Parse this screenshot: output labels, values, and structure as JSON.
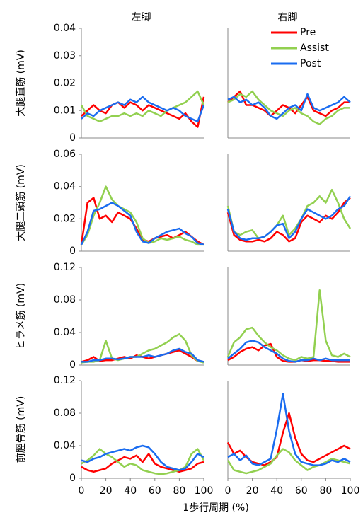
{
  "xlabel": "1歩行周期 (%)",
  "chart_data": [
    {
      "type": "line",
      "title": "左脚",
      "ylabel": "大腿直筋 (mV)",
      "x": [
        0,
        5,
        10,
        15,
        20,
        25,
        30,
        35,
        40,
        45,
        50,
        55,
        60,
        65,
        70,
        75,
        80,
        85,
        90,
        95,
        100
      ],
      "xlim": [
        0,
        100
      ],
      "ylim": [
        0,
        0.04
      ],
      "yticks": [
        0,
        0.01,
        0.02,
        0.03,
        0.04
      ],
      "series": [
        {
          "color": "#ff0000",
          "values": [
            0.008,
            0.01,
            0.012,
            0.01,
            0.009,
            0.012,
            0.013,
            0.011,
            0.013,
            0.012,
            0.01,
            0.012,
            0.011,
            0.01,
            0.009,
            0.008,
            0.007,
            0.009,
            0.006,
            0.004,
            0.015
          ]
        },
        {
          "color": "#92d050",
          "values": [
            0.012,
            0.008,
            0.007,
            0.006,
            0.007,
            0.008,
            0.008,
            0.009,
            0.008,
            0.009,
            0.008,
            0.01,
            0.009,
            0.008,
            0.01,
            0.011,
            0.012,
            0.013,
            0.015,
            0.017,
            0.012
          ]
        },
        {
          "color": "#1a6cf0",
          "values": [
            0.007,
            0.009,
            0.008,
            0.01,
            0.011,
            0.012,
            0.013,
            0.012,
            0.014,
            0.013,
            0.015,
            0.013,
            0.012,
            0.011,
            0.01,
            0.011,
            0.01,
            0.008,
            0.007,
            0.006,
            0.012
          ]
        }
      ]
    },
    {
      "type": "line",
      "title": "右脚",
      "legend": "upper right",
      "x": [
        0,
        5,
        10,
        15,
        20,
        25,
        30,
        35,
        40,
        45,
        50,
        55,
        60,
        65,
        70,
        75,
        80,
        85,
        90,
        95,
        100
      ],
      "xlim": [
        0,
        100
      ],
      "ylim": [
        0,
        0.04
      ],
      "series": [
        {
          "name": "Pre",
          "color": "#ff0000",
          "values": [
            0.013,
            0.015,
            0.017,
            0.012,
            0.012,
            0.011,
            0.01,
            0.008,
            0.01,
            0.012,
            0.011,
            0.009,
            0.012,
            0.015,
            0.01,
            0.009,
            0.008,
            0.01,
            0.011,
            0.013,
            0.013
          ]
        },
        {
          "name": "Assist",
          "color": "#92d050",
          "values": [
            0.013,
            0.014,
            0.016,
            0.015,
            0.017,
            0.014,
            0.012,
            0.01,
            0.009,
            0.008,
            0.01,
            0.011,
            0.009,
            0.008,
            0.006,
            0.005,
            0.007,
            0.008,
            0.01,
            0.011,
            0.011
          ]
        },
        {
          "name": "Post",
          "color": "#1a6cf0",
          "values": [
            0.014,
            0.015,
            0.013,
            0.014,
            0.012,
            0.013,
            0.011,
            0.008,
            0.007,
            0.009,
            0.011,
            0.012,
            0.01,
            0.016,
            0.011,
            0.01,
            0.011,
            0.012,
            0.013,
            0.015,
            0.013
          ]
        }
      ]
    },
    {
      "type": "line",
      "ylabel": "大腿二頭筋 (mV)",
      "x": [
        0,
        5,
        10,
        15,
        20,
        25,
        30,
        35,
        40,
        45,
        50,
        55,
        60,
        65,
        70,
        75,
        80,
        85,
        90,
        95,
        100
      ],
      "xlim": [
        0,
        100
      ],
      "ylim": [
        0,
        0.06
      ],
      "yticks": [
        0,
        0.02,
        0.04,
        0.06
      ],
      "series": [
        {
          "color": "#ff0000",
          "values": [
            0.004,
            0.03,
            0.033,
            0.02,
            0.022,
            0.018,
            0.024,
            0.022,
            0.02,
            0.014,
            0.007,
            0.006,
            0.008,
            0.009,
            0.01,
            0.008,
            0.01,
            0.012,
            0.009,
            0.006,
            0.004
          ]
        },
        {
          "color": "#92d050",
          "values": [
            0.004,
            0.01,
            0.022,
            0.03,
            0.04,
            0.032,
            0.028,
            0.026,
            0.024,
            0.018,
            0.008,
            0.005,
            0.006,
            0.008,
            0.007,
            0.008,
            0.009,
            0.007,
            0.006,
            0.004,
            0.004
          ]
        },
        {
          "color": "#1a6cf0",
          "values": [
            0.004,
            0.012,
            0.025,
            0.026,
            0.028,
            0.03,
            0.028,
            0.025,
            0.022,
            0.012,
            0.006,
            0.005,
            0.008,
            0.01,
            0.012,
            0.013,
            0.014,
            0.011,
            0.009,
            0.005,
            0.004
          ]
        }
      ]
    },
    {
      "type": "line",
      "x": [
        0,
        5,
        10,
        15,
        20,
        25,
        30,
        35,
        40,
        45,
        50,
        55,
        60,
        65,
        70,
        75,
        80,
        85,
        90,
        95,
        100
      ],
      "xlim": [
        0,
        100
      ],
      "ylim": [
        0,
        0.06
      ],
      "series": [
        {
          "color": "#ff0000",
          "values": [
            0.024,
            0.01,
            0.007,
            0.006,
            0.006,
            0.007,
            0.006,
            0.008,
            0.012,
            0.01,
            0.006,
            0.008,
            0.018,
            0.022,
            0.02,
            0.018,
            0.022,
            0.02,
            0.024,
            0.03,
            0.033
          ]
        },
        {
          "color": "#92d050",
          "values": [
            0.028,
            0.012,
            0.01,
            0.012,
            0.013,
            0.008,
            0.009,
            0.012,
            0.016,
            0.022,
            0.01,
            0.014,
            0.02,
            0.028,
            0.03,
            0.034,
            0.03,
            0.038,
            0.03,
            0.02,
            0.014
          ]
        },
        {
          "color": "#1a6cf0",
          "values": [
            0.026,
            0.012,
            0.008,
            0.007,
            0.008,
            0.008,
            0.009,
            0.012,
            0.016,
            0.017,
            0.008,
            0.012,
            0.02,
            0.026,
            0.024,
            0.022,
            0.02,
            0.022,
            0.026,
            0.028,
            0.034
          ]
        }
      ]
    },
    {
      "type": "line",
      "ylabel": "ヒラメ筋 (mV)",
      "x": [
        0,
        5,
        10,
        15,
        20,
        25,
        30,
        35,
        40,
        45,
        50,
        55,
        60,
        65,
        70,
        75,
        80,
        85,
        90,
        95,
        100
      ],
      "xlim": [
        0,
        100
      ],
      "ylim": [
        0,
        0.12
      ],
      "yticks": [
        0,
        0.04,
        0.08,
        0.12
      ],
      "series": [
        {
          "color": "#ff0000",
          "values": [
            0.004,
            0.006,
            0.01,
            0.005,
            0.006,
            0.006,
            0.008,
            0.01,
            0.008,
            0.012,
            0.01,
            0.008,
            0.01,
            0.012,
            0.014,
            0.016,
            0.018,
            0.014,
            0.01,
            0.005,
            0.004
          ]
        },
        {
          "color": "#92d050",
          "values": [
            0.003,
            0.004,
            0.004,
            0.006,
            0.03,
            0.008,
            0.006,
            0.008,
            0.01,
            0.01,
            0.014,
            0.018,
            0.02,
            0.024,
            0.028,
            0.034,
            0.038,
            0.03,
            0.012,
            0.005,
            0.003
          ]
        },
        {
          "color": "#1a6cf0",
          "values": [
            0.004,
            0.004,
            0.006,
            0.006,
            0.008,
            0.008,
            0.007,
            0.008,
            0.01,
            0.01,
            0.01,
            0.012,
            0.01,
            0.012,
            0.014,
            0.018,
            0.02,
            0.016,
            0.014,
            0.006,
            0.004
          ]
        }
      ]
    },
    {
      "type": "line",
      "x": [
        0,
        5,
        10,
        15,
        20,
        25,
        30,
        35,
        40,
        45,
        50,
        55,
        60,
        65,
        70,
        75,
        80,
        85,
        90,
        95,
        100
      ],
      "xlim": [
        0,
        100
      ],
      "ylim": [
        0,
        0.12
      ],
      "series": [
        {
          "color": "#ff0000",
          "values": [
            0.006,
            0.01,
            0.016,
            0.02,
            0.022,
            0.018,
            0.024,
            0.026,
            0.01,
            0.005,
            0.004,
            0.004,
            0.006,
            0.005,
            0.006,
            0.006,
            0.005,
            0.005,
            0.004,
            0.004,
            0.004
          ]
        },
        {
          "color": "#92d050",
          "values": [
            0.01,
            0.028,
            0.034,
            0.044,
            0.046,
            0.036,
            0.028,
            0.022,
            0.018,
            0.012,
            0.008,
            0.006,
            0.01,
            0.008,
            0.01,
            0.092,
            0.03,
            0.012,
            0.01,
            0.014,
            0.01
          ]
        },
        {
          "color": "#1a6cf0",
          "values": [
            0.008,
            0.014,
            0.02,
            0.028,
            0.03,
            0.028,
            0.022,
            0.018,
            0.014,
            0.008,
            0.005,
            0.004,
            0.006,
            0.006,
            0.008,
            0.006,
            0.008,
            0.006,
            0.006,
            0.006,
            0.006
          ]
        }
      ]
    },
    {
      "type": "line",
      "ylabel": "前脛骨筋 (mV)",
      "x": [
        0,
        5,
        10,
        15,
        20,
        25,
        30,
        35,
        40,
        45,
        50,
        55,
        60,
        65,
        70,
        75,
        80,
        85,
        90,
        95,
        100
      ],
      "xlim": [
        0,
        100
      ],
      "xticks": [
        0,
        20,
        40,
        60,
        80,
        100
      ],
      "ylim": [
        0,
        0.12
      ],
      "yticks": [
        0,
        0.04,
        0.08,
        0.12
      ],
      "series": [
        {
          "color": "#ff0000",
          "values": [
            0.014,
            0.01,
            0.008,
            0.01,
            0.012,
            0.018,
            0.022,
            0.026,
            0.024,
            0.028,
            0.02,
            0.03,
            0.018,
            0.014,
            0.012,
            0.01,
            0.008,
            0.01,
            0.012,
            0.018,
            0.02
          ]
        },
        {
          "color": "#92d050",
          "values": [
            0.018,
            0.022,
            0.028,
            0.036,
            0.03,
            0.026,
            0.02,
            0.014,
            0.018,
            0.016,
            0.01,
            0.008,
            0.006,
            0.005,
            0.006,
            0.008,
            0.01,
            0.014,
            0.03,
            0.036,
            0.022
          ]
        },
        {
          "color": "#1a6cf0",
          "values": [
            0.022,
            0.02,
            0.024,
            0.026,
            0.03,
            0.032,
            0.034,
            0.036,
            0.034,
            0.038,
            0.04,
            0.038,
            0.03,
            0.02,
            0.014,
            0.012,
            0.01,
            0.012,
            0.02,
            0.03,
            0.026
          ]
        }
      ]
    },
    {
      "type": "line",
      "x": [
        0,
        5,
        10,
        15,
        20,
        25,
        30,
        35,
        40,
        45,
        50,
        55,
        60,
        65,
        70,
        75,
        80,
        85,
        90,
        95,
        100
      ],
      "xlim": [
        0,
        100
      ],
      "xticks": [
        0,
        20,
        40,
        60,
        80,
        100
      ],
      "ylim": [
        0,
        0.12
      ],
      "series": [
        {
          "color": "#ff0000",
          "values": [
            0.044,
            0.03,
            0.034,
            0.026,
            0.02,
            0.018,
            0.016,
            0.02,
            0.026,
            0.056,
            0.08,
            0.05,
            0.03,
            0.022,
            0.02,
            0.024,
            0.028,
            0.032,
            0.036,
            0.04,
            0.036
          ]
        },
        {
          "color": "#92d050",
          "values": [
            0.022,
            0.01,
            0.008,
            0.006,
            0.008,
            0.01,
            0.014,
            0.018,
            0.028,
            0.036,
            0.032,
            0.022,
            0.016,
            0.01,
            0.014,
            0.016,
            0.02,
            0.024,
            0.022,
            0.02,
            0.018
          ]
        },
        {
          "color": "#1a6cf0",
          "values": [
            0.026,
            0.03,
            0.022,
            0.028,
            0.018,
            0.016,
            0.02,
            0.024,
            0.06,
            0.104,
            0.058,
            0.03,
            0.02,
            0.018,
            0.016,
            0.016,
            0.018,
            0.022,
            0.02,
            0.024,
            0.02
          ]
        }
      ]
    }
  ]
}
